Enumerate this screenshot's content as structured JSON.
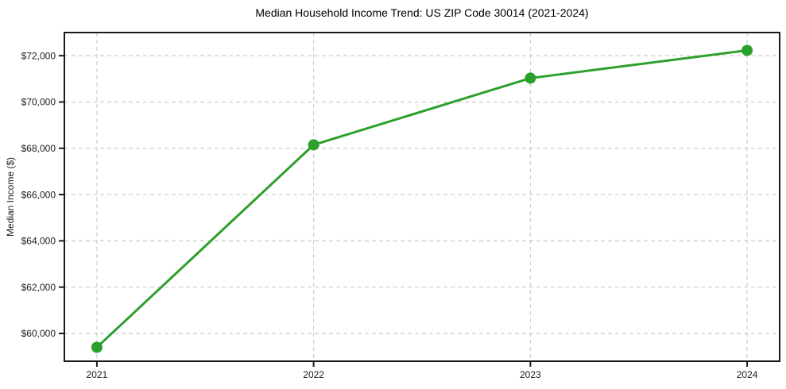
{
  "figure": {
    "background": "#ffffff"
  },
  "chart_data": {
    "type": "line",
    "title": "Median Household Income Trend: US ZIP Code 30014 (2021-2024)",
    "xlabel": "",
    "ylabel": "Median Income ($)",
    "categories": [
      "2021",
      "2022",
      "2023",
      "2024"
    ],
    "series": [
      {
        "name": "Median Household Income",
        "values": [
          59400,
          68150,
          71030,
          72230
        ],
        "color": "#2ca02c",
        "marker": "circle"
      }
    ],
    "ylim": [
      58800,
      73000
    ],
    "yticks": [
      60000,
      62000,
      64000,
      66000,
      68000,
      70000,
      72000
    ],
    "ytick_labels": [
      "$60,000",
      "$62,000",
      "$64,000",
      "$66,000",
      "$68,000",
      "$70,000",
      "$72,000"
    ],
    "grid": true,
    "grid_style": "dashed",
    "grid_color": "#cccccc",
    "axis_color": "#1a1a1a",
    "legend_position": "none"
  }
}
